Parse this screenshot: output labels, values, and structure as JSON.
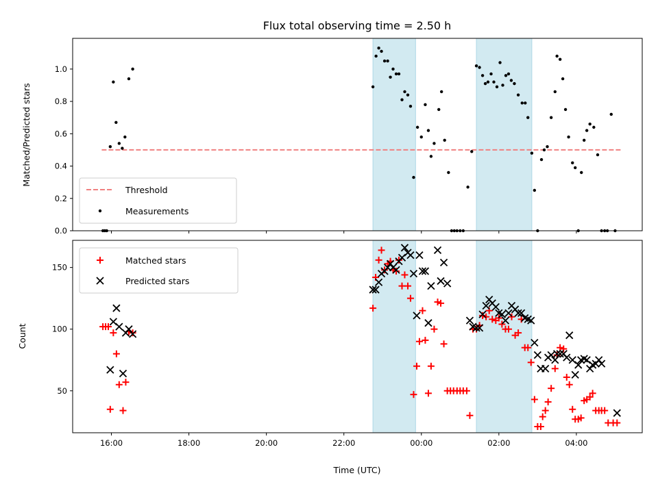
{
  "figure": {
    "title": "Flux total observing time = 2.50 h",
    "xlabel": "Time (UTC)",
    "xticks": [
      "16:00",
      "18:00",
      "20:00",
      "22:00",
      "00:00",
      "02:00",
      "04:00"
    ]
  },
  "chart_data": [
    {
      "type": "scatter",
      "ylabel": "Matched/Predicted stars",
      "xlim": [
        15.0,
        29.7
      ],
      "ylim": [
        0.0,
        1.19
      ],
      "yticks": [
        "0.0",
        "0.2",
        "0.4",
        "0.6",
        "0.8",
        "1.0"
      ],
      "shaded_x_ranges": [
        [
          22.75,
          23.85
        ],
        [
          25.42,
          26.85
        ]
      ],
      "shade_color": "#add8e6",
      "threshold": {
        "name": "Threshold",
        "value": 0.5,
        "x": [
          15.75,
          29.15
        ],
        "color": "#f08080",
        "style": "dashed"
      },
      "legend_position": "lower-left",
      "series": [
        {
          "name": "Measurements",
          "marker": "dot",
          "color": "#000000",
          "points": [
            [
              15.78,
              0.0
            ],
            [
              15.83,
              0.0
            ],
            [
              15.88,
              0.0
            ],
            [
              15.97,
              0.52
            ],
            [
              16.05,
              0.92
            ],
            [
              16.12,
              0.67
            ],
            [
              16.2,
              0.54
            ],
            [
              16.28,
              0.51
            ],
            [
              16.35,
              0.58
            ],
            [
              16.45,
              0.94
            ],
            [
              16.55,
              1.0
            ],
            [
              22.75,
              0.89
            ],
            [
              22.83,
              1.08
            ],
            [
              22.9,
              1.13
            ],
            [
              22.97,
              1.11
            ],
            [
              23.05,
              1.05
            ],
            [
              23.13,
              1.05
            ],
            [
              23.2,
              0.95
            ],
            [
              23.27,
              1.0
            ],
            [
              23.35,
              0.97
            ],
            [
              23.42,
              0.97
            ],
            [
              23.5,
              0.81
            ],
            [
              23.57,
              0.86
            ],
            [
              23.65,
              0.84
            ],
            [
              23.72,
              0.77
            ],
            [
              23.8,
              0.33
            ],
            [
              23.9,
              0.64
            ],
            [
              24.0,
              0.58
            ],
            [
              24.1,
              0.78
            ],
            [
              24.18,
              0.62
            ],
            [
              24.25,
              0.46
            ],
            [
              24.33,
              0.54
            ],
            [
              24.45,
              0.75
            ],
            [
              24.52,
              0.86
            ],
            [
              24.6,
              0.56
            ],
            [
              24.7,
              0.36
            ],
            [
              24.78,
              0.0
            ],
            [
              24.85,
              0.0
            ],
            [
              24.92,
              0.0
            ],
            [
              25.0,
              0.0
            ],
            [
              25.08,
              0.0
            ],
            [
              25.2,
              0.27
            ],
            [
              25.3,
              0.49
            ],
            [
              25.42,
              1.02
            ],
            [
              25.5,
              1.01
            ],
            [
              25.58,
              0.96
            ],
            [
              25.65,
              0.91
            ],
            [
              25.72,
              0.92
            ],
            [
              25.8,
              0.97
            ],
            [
              25.87,
              0.92
            ],
            [
              25.95,
              0.89
            ],
            [
              26.03,
              1.04
            ],
            [
              26.1,
              0.9
            ],
            [
              26.18,
              0.96
            ],
            [
              26.25,
              0.97
            ],
            [
              26.32,
              0.93
            ],
            [
              26.4,
              0.91
            ],
            [
              26.5,
              0.84
            ],
            [
              26.6,
              0.79
            ],
            [
              26.68,
              0.79
            ],
            [
              26.75,
              0.7
            ],
            [
              26.85,
              0.48
            ],
            [
              26.92,
              0.25
            ],
            [
              27.0,
              0.0
            ],
            [
              27.1,
              0.44
            ],
            [
              27.17,
              0.5
            ],
            [
              27.25,
              0.52
            ],
            [
              27.35,
              0.7
            ],
            [
              27.45,
              0.86
            ],
            [
              27.5,
              1.08
            ],
            [
              27.58,
              1.06
            ],
            [
              27.65,
              0.94
            ],
            [
              27.72,
              0.75
            ],
            [
              27.8,
              0.58
            ],
            [
              27.9,
              0.42
            ],
            [
              27.97,
              0.39
            ],
            [
              28.05,
              0.0
            ],
            [
              28.13,
              0.36
            ],
            [
              28.2,
              0.56
            ],
            [
              28.27,
              0.62
            ],
            [
              28.35,
              0.66
            ],
            [
              28.45,
              0.64
            ],
            [
              28.55,
              0.47
            ],
            [
              28.65,
              0.0
            ],
            [
              28.73,
              0.0
            ],
            [
              28.8,
              0.0
            ],
            [
              28.9,
              0.72
            ],
            [
              29.0,
              0.0
            ]
          ]
        }
      ]
    },
    {
      "type": "scatter",
      "ylabel": "Count",
      "xlim": [
        15.0,
        29.7
      ],
      "ylim": [
        16,
        172
      ],
      "yticks": [
        "50",
        "100",
        "150"
      ],
      "shaded_x_ranges": [
        [
          22.75,
          23.85
        ],
        [
          25.42,
          26.85
        ]
      ],
      "shade_color": "#add8e6",
      "legend_position": "upper-left",
      "series": [
        {
          "name": "Matched stars",
          "marker": "plus",
          "color": "#ff0000",
          "points": [
            [
              15.78,
              102
            ],
            [
              15.85,
              102
            ],
            [
              15.92,
              102
            ],
            [
              15.97,
              35
            ],
            [
              16.05,
              97
            ],
            [
              16.13,
              80
            ],
            [
              16.2,
              55
            ],
            [
              16.3,
              34
            ],
            [
              16.37,
              57
            ],
            [
              16.45,
              98
            ],
            [
              16.55,
              97
            ],
            [
              22.75,
              117
            ],
            [
              22.82,
              142
            ],
            [
              22.9,
              156
            ],
            [
              22.97,
              164
            ],
            [
              23.05,
              148
            ],
            [
              23.13,
              153
            ],
            [
              23.2,
              155
            ],
            [
              23.27,
              148
            ],
            [
              23.35,
              147
            ],
            [
              23.42,
              156
            ],
            [
              23.5,
              135
            ],
            [
              23.57,
              144
            ],
            [
              23.65,
              135
            ],
            [
              23.72,
              125
            ],
            [
              23.8,
              47
            ],
            [
              23.88,
              70
            ],
            [
              23.95,
              90
            ],
            [
              24.03,
              115
            ],
            [
              24.1,
              91
            ],
            [
              24.18,
              48
            ],
            [
              24.25,
              70
            ],
            [
              24.33,
              100
            ],
            [
              24.42,
              122
            ],
            [
              24.5,
              121
            ],
            [
              24.58,
              88
            ],
            [
              24.67,
              50
            ],
            [
              24.75,
              50
            ],
            [
              24.83,
              50
            ],
            [
              24.92,
              50
            ],
            [
              25.0,
              50
            ],
            [
              25.08,
              50
            ],
            [
              25.17,
              50
            ],
            [
              25.25,
              30
            ],
            [
              25.33,
              100
            ],
            [
              25.42,
              100
            ],
            [
              25.5,
              103
            ],
            [
              25.58,
              111
            ],
            [
              25.67,
              110
            ],
            [
              25.75,
              115
            ],
            [
              25.83,
              108
            ],
            [
              25.92,
              107
            ],
            [
              26.0,
              109
            ],
            [
              26.08,
              104
            ],
            [
              26.17,
              100
            ],
            [
              26.25,
              100
            ],
            [
              26.33,
              110
            ],
            [
              26.42,
              95
            ],
            [
              26.5,
              97
            ],
            [
              26.58,
              108
            ],
            [
              26.67,
              85
            ],
            [
              26.75,
              85
            ],
            [
              26.83,
              73
            ],
            [
              26.92,
              43
            ],
            [
              27.0,
              21
            ],
            [
              27.08,
              21
            ],
            [
              27.13,
              29
            ],
            [
              27.2,
              34
            ],
            [
              27.27,
              41
            ],
            [
              27.35,
              52
            ],
            [
              27.45,
              68
            ],
            [
              27.5,
              79
            ],
            [
              27.58,
              85
            ],
            [
              27.67,
              84
            ],
            [
              27.75,
              61
            ],
            [
              27.82,
              55
            ],
            [
              27.9,
              35
            ],
            [
              27.97,
              27
            ],
            [
              28.05,
              27
            ],
            [
              28.12,
              28
            ],
            [
              28.2,
              42
            ],
            [
              28.27,
              43
            ],
            [
              28.35,
              45
            ],
            [
              28.42,
              48
            ],
            [
              28.5,
              34
            ],
            [
              28.58,
              34
            ],
            [
              28.65,
              34
            ],
            [
              28.73,
              34
            ],
            [
              28.82,
              24
            ],
            [
              28.95,
              24
            ],
            [
              29.05,
              24
            ]
          ]
        },
        {
          "name": "Predicted stars",
          "marker": "x",
          "color": "#000000",
          "points": [
            [
              15.97,
              67
            ],
            [
              16.05,
              106
            ],
            [
              16.13,
              117
            ],
            [
              16.2,
              102
            ],
            [
              16.3,
              64
            ],
            [
              16.37,
              97
            ],
            [
              16.45,
              100
            ],
            [
              16.55,
              96
            ],
            [
              22.75,
              132
            ],
            [
              22.82,
              132
            ],
            [
              22.9,
              138
            ],
            [
              22.97,
              145
            ],
            [
              23.05,
              147
            ],
            [
              23.13,
              150
            ],
            [
              23.2,
              153
            ],
            [
              23.27,
              150
            ],
            [
              23.35,
              148
            ],
            [
              23.42,
              155
            ],
            [
              23.5,
              158
            ],
            [
              23.57,
              166
            ],
            [
              23.65,
              162
            ],
            [
              23.72,
              160
            ],
            [
              23.8,
              145
            ],
            [
              23.88,
              111
            ],
            [
              23.95,
              160
            ],
            [
              24.03,
              147
            ],
            [
              24.1,
              147
            ],
            [
              24.18,
              105
            ],
            [
              24.25,
              135
            ],
            [
              24.42,
              164
            ],
            [
              24.5,
              139
            ],
            [
              24.58,
              154
            ],
            [
              24.67,
              137
            ],
            [
              25.25,
              107
            ],
            [
              25.33,
              102
            ],
            [
              25.42,
              101
            ],
            [
              25.5,
              101
            ],
            [
              25.58,
              112
            ],
            [
              25.67,
              119
            ],
            [
              25.75,
              124
            ],
            [
              25.83,
              121
            ],
            [
              25.92,
              118
            ],
            [
              26.0,
              113
            ],
            [
              26.08,
              112
            ],
            [
              26.17,
              107
            ],
            [
              26.25,
              113
            ],
            [
              26.33,
              119
            ],
            [
              26.42,
              116
            ],
            [
              26.5,
              113
            ],
            [
              26.58,
              113
            ],
            [
              26.67,
              109
            ],
            [
              26.75,
              108
            ],
            [
              26.83,
              107
            ],
            [
              26.92,
              89
            ],
            [
              27.0,
              79
            ],
            [
              27.08,
              68
            ],
            [
              27.2,
              68
            ],
            [
              27.27,
              77
            ],
            [
              27.35,
              79
            ],
            [
              27.45,
              75
            ],
            [
              27.5,
              80
            ],
            [
              27.58,
              80
            ],
            [
              27.67,
              80
            ],
            [
              27.75,
              77
            ],
            [
              27.82,
              95
            ],
            [
              27.9,
              75
            ],
            [
              27.97,
              63
            ],
            [
              28.05,
              71
            ],
            [
              28.12,
              75
            ],
            [
              28.2,
              76
            ],
            [
              28.27,
              75
            ],
            [
              28.35,
              68
            ],
            [
              28.42,
              71
            ],
            [
              28.5,
              72
            ],
            [
              28.58,
              75
            ],
            [
              28.65,
              72
            ],
            [
              29.05,
              32
            ]
          ]
        }
      ]
    }
  ]
}
